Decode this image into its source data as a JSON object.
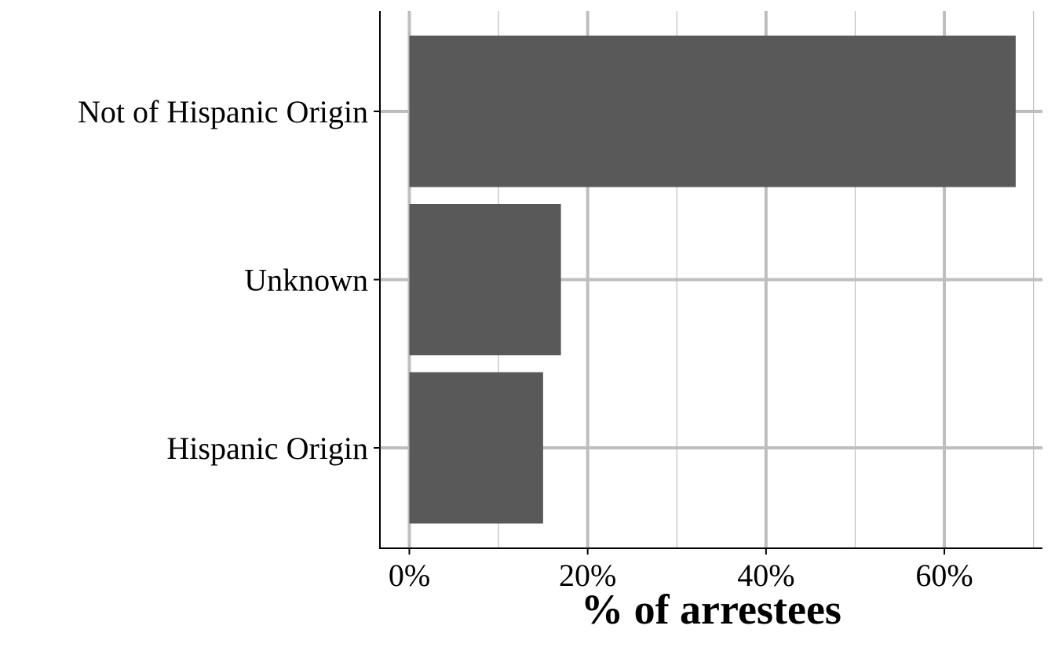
{
  "chart_data": {
    "type": "bar",
    "orientation": "horizontal",
    "categories": [
      "Not of Hispanic Origin",
      "Unknown",
      "Hispanic Origin"
    ],
    "values": [
      0.68,
      0.17,
      0.15
    ],
    "xlabel": "% of arrestees",
    "ylabel": "",
    "title": "",
    "xlim": [
      -0.033,
      0.71
    ],
    "x_ticks": [
      0,
      0.2,
      0.4,
      0.6
    ],
    "x_tick_labels": [
      "0%",
      "20%",
      "40%",
      "60%"
    ],
    "x_minor_ticks": [
      0.1,
      0.3,
      0.5,
      0.7
    ],
    "grid": true,
    "legend": "none",
    "colors": {
      "bar": "#595959",
      "grid": "#bebebe",
      "axis": "#000000",
      "background": "#ffffff"
    }
  }
}
